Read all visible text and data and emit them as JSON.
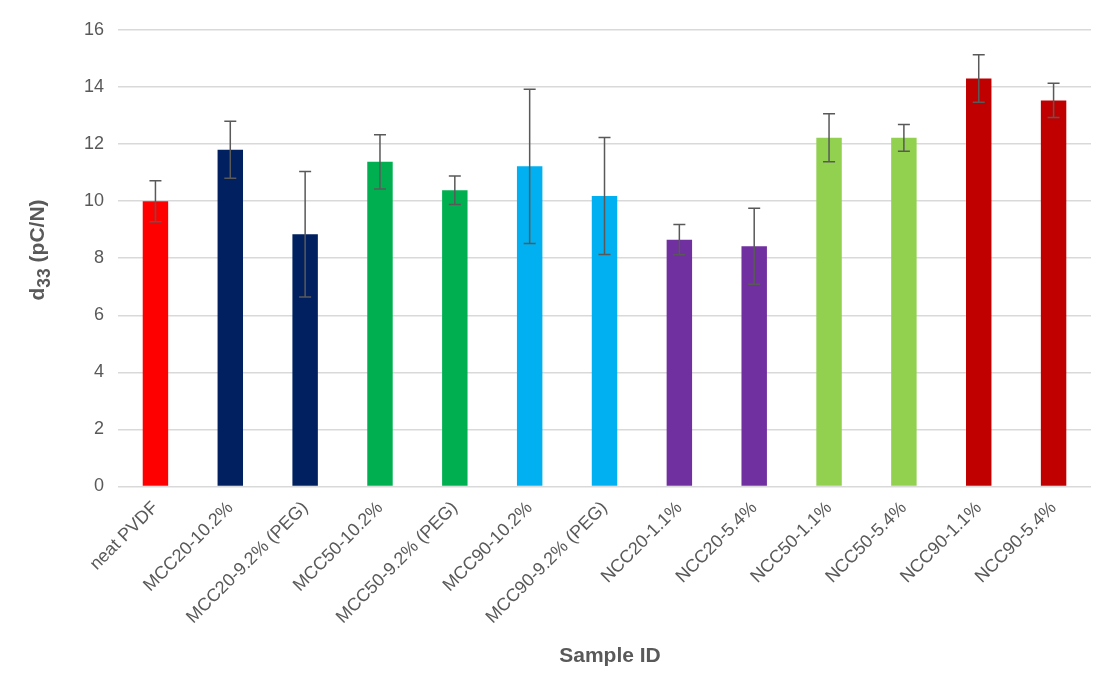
{
  "chart_data": {
    "type": "bar",
    "xlabel": "Sample ID",
    "ylabel": "d$_{33}$ (pC/N)",
    "categories": [
      "neat PVDF",
      "MCC20-10.2%",
      "MCC20-9.2% (PEG)",
      "MCC50-10.2%",
      "MCC50-9.2% (PEG)",
      "MCC90-10.2%",
      "MCC90-9.2% (PEG)",
      "NCC20-1.1%",
      "NCC20-5.4%",
      "NCC50-1.1%",
      "NCC50-5.4%",
      "NCC90-1.1%",
      "NCC90-5.4%"
    ],
    "values": [
      10.0,
      11.8,
      8.84,
      11.38,
      10.38,
      11.22,
      10.18,
      8.65,
      8.42,
      12.22,
      12.22,
      14.3,
      13.53
    ],
    "errors": [
      0.72,
      1.0,
      2.2,
      0.95,
      0.5,
      2.7,
      2.05,
      0.53,
      1.33,
      0.84,
      0.47,
      0.83,
      0.6
    ],
    "colors": [
      "#ff0000",
      "#002060",
      "#002060",
      "#00b050",
      "#00b050",
      "#00b0f0",
      "#00b0f0",
      "#7030a0",
      "#7030a0",
      "#92d050",
      "#92d050",
      "#c00000",
      "#c00000"
    ],
    "ylim": [
      0,
      16
    ],
    "yticks": [
      0,
      2,
      4,
      6,
      8,
      10,
      12,
      14,
      16
    ],
    "grid": "y",
    "legend": false
  }
}
